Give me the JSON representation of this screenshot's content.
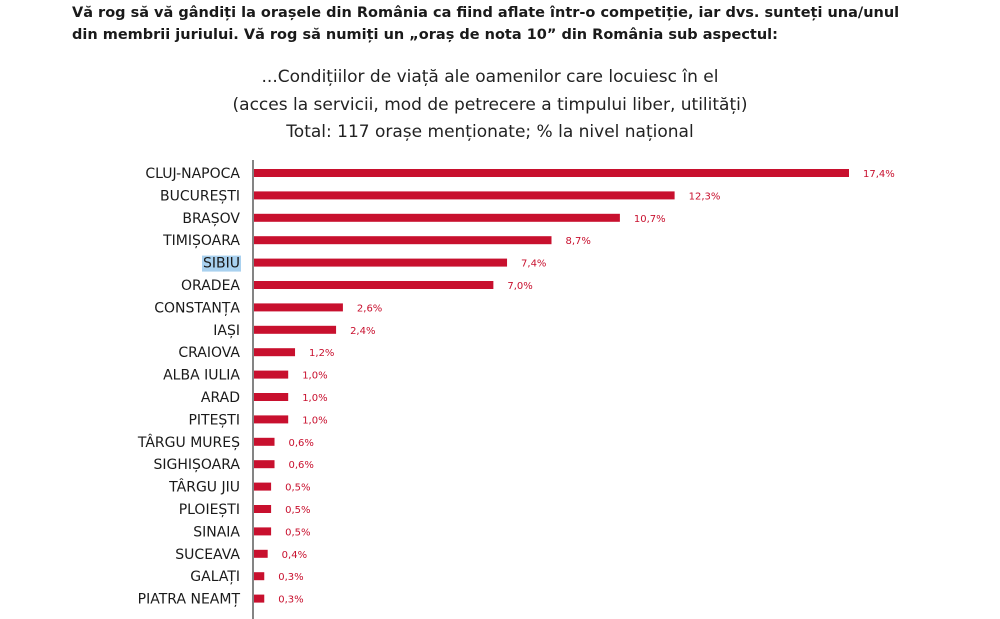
{
  "question": {
    "line1": "Vă rog să vă gândiți la orașele din România ca fiind aflate într-o competiție, iar dvs. sunteți una/unul",
    "line2": "din membrii juriului. Vă rog să numiți un „oraș de nota 10” din România sub aspectul:"
  },
  "chart_data": {
    "type": "bar",
    "orientation": "horizontal",
    "title_lines": [
      "...Condițiilor de viață ale oamenilor care locuiesc în el",
      "(acces la servicii, mod de petrecere a timpului liber, utilități)",
      "Total: 117 orașe menționate; % la nivel național"
    ],
    "categories": [
      "CLUJ-NAPOCA",
      "BUCUREȘTI",
      "BRAȘOV",
      "TIMIȘOARA",
      "SIBIU",
      "ORADEA",
      "CONSTANȚA",
      "IAȘI",
      "CRAIOVA",
      "ALBA IULIA",
      "ARAD",
      "PITEȘTI",
      "TÂRGU MUREȘ",
      "SIGHIȘOARA",
      "TÂRGU JIU",
      "PLOIEȘTI",
      "SINAIA",
      "SUCEAVA",
      "GALAȚI",
      "PIATRA NEAMȚ"
    ],
    "values": [
      17.4,
      12.3,
      10.7,
      8.7,
      7.4,
      7.0,
      2.6,
      2.4,
      1.2,
      1.0,
      1.0,
      1.0,
      0.6,
      0.6,
      0.5,
      0.5,
      0.5,
      0.4,
      0.3,
      0.3
    ],
    "value_labels": [
      "17,4%",
      "12,3%",
      "10,7%",
      "8,7%",
      "7,4%",
      "7,0%",
      "2,6%",
      "2,4%",
      "1,2%",
      "1,0%",
      "1,0%",
      "1,0%",
      "0,6%",
      "0,6%",
      "0,5%",
      "0,5%",
      "0,5%",
      "0,4%",
      "0,3%",
      "0,3%"
    ],
    "highlighted_category": "SIBIU",
    "bar_color": "#c8102e",
    "label_color": "#c8102e",
    "highlight_color": "#a9d1ef",
    "xlim": [
      0,
      17.4
    ],
    "grid": false,
    "legend": "none"
  }
}
